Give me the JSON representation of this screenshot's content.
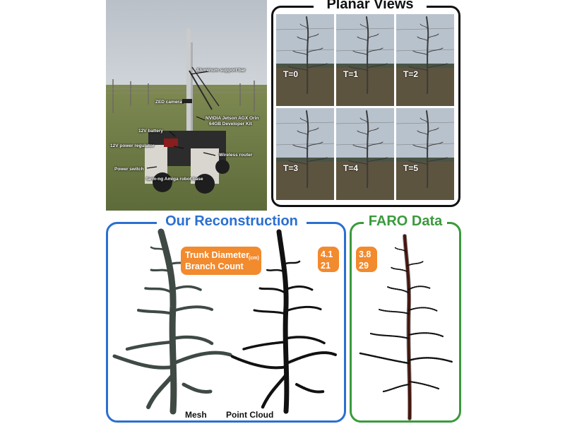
{
  "robot_photo": {
    "callouts": [
      "Aluminum support bar",
      "ZED camera",
      "NVIDIA Jetson AGX Orin",
      "64GB Developer Kit",
      "12V battery",
      "12V power regulator",
      "Wireless router",
      "Power switch",
      "farm-ng Amiga robot base"
    ]
  },
  "planar_views": {
    "title": "Planar Views",
    "frames": [
      "T=0",
      "T=1",
      "T=2",
      "T=3",
      "T=4",
      "T=5"
    ]
  },
  "reconstruction": {
    "title": "Our Reconstruction",
    "metrics_label_1": "Trunk Diameter",
    "metrics_unit": "(cm)",
    "metrics_label_2": "Branch Count",
    "trunk_diameter": "4.1",
    "branch_count": "21",
    "mesh_label": "Mesh",
    "point_cloud_label": "Point Cloud"
  },
  "faro": {
    "title": "FARO Data",
    "trunk_diameter": "3.8",
    "branch_count": "29"
  },
  "colors": {
    "recon_blue": "#2a6fd1",
    "faro_green": "#3a9a3c",
    "badge_orange": "#f28a2e",
    "mesh_color": "#3f4a45",
    "faro_trunk": "#7a1a0a"
  }
}
